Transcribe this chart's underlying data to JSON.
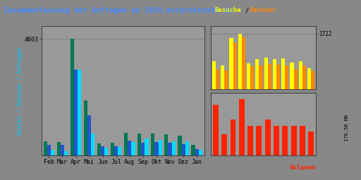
{
  "title": "Zusammenfassung der Anfragen an 2020.mscbrokstedt.de",
  "title_color": "#4488ff",
  "legend_besuche": "Besuche",
  "legend_rechner": "Rechner",
  "legend_besuche_color": "#ffff00",
  "legend_rechner_color": "#ff8800",
  "legend_volumen": "Volumen",
  "legend_volumen_color": "#ff2200",
  "ylabel_left": "Seiten / Dateien / Anfragen",
  "ylabel_left_color": "#00ccff",
  "ylabel_right_top": "1722",
  "ylabel_right_bottom": "176.56 MB",
  "months": [
    "Feb",
    "Mar",
    "Apr",
    "Mai",
    "Jun",
    "Jul",
    "Aug",
    "Sep",
    "Okt",
    "Nov",
    "Dez",
    "Jan"
  ],
  "left_tick_label": "4603",
  "anfragen": [
    560,
    550,
    4603,
    2180,
    490,
    500,
    910,
    880,
    870,
    830,
    790,
    440
  ],
  "seiten": [
    430,
    420,
    3380,
    1600,
    360,
    380,
    590,
    520,
    530,
    500,
    460,
    270
  ],
  "dateien": [
    240,
    185,
    3390,
    870,
    320,
    335,
    545,
    675,
    625,
    555,
    575,
    220
  ],
  "anfragen_color": "#007755",
  "seiten_color": "#2255cc",
  "dateien_color": "#00ddff",
  "besuche": [
    870,
    740,
    1580,
    1722,
    800,
    920,
    980,
    930,
    940,
    810,
    870,
    650
  ],
  "rechner": [
    600,
    590,
    1430,
    1600,
    700,
    740,
    780,
    760,
    730,
    630,
    730,
    560
  ],
  "besuche_color": "#ffff00",
  "rechner_color": "#ff8800",
  "volumen": [
    0.85,
    0.36,
    0.6,
    0.94,
    0.5,
    0.5,
    0.6,
    0.5,
    0.5,
    0.5,
    0.5,
    0.4
  ],
  "volumen_color": "#ff2200",
  "bg_color": "#888888",
  "panel_bg": "#999999",
  "grid_color": "#777777",
  "border_color": "#444444"
}
